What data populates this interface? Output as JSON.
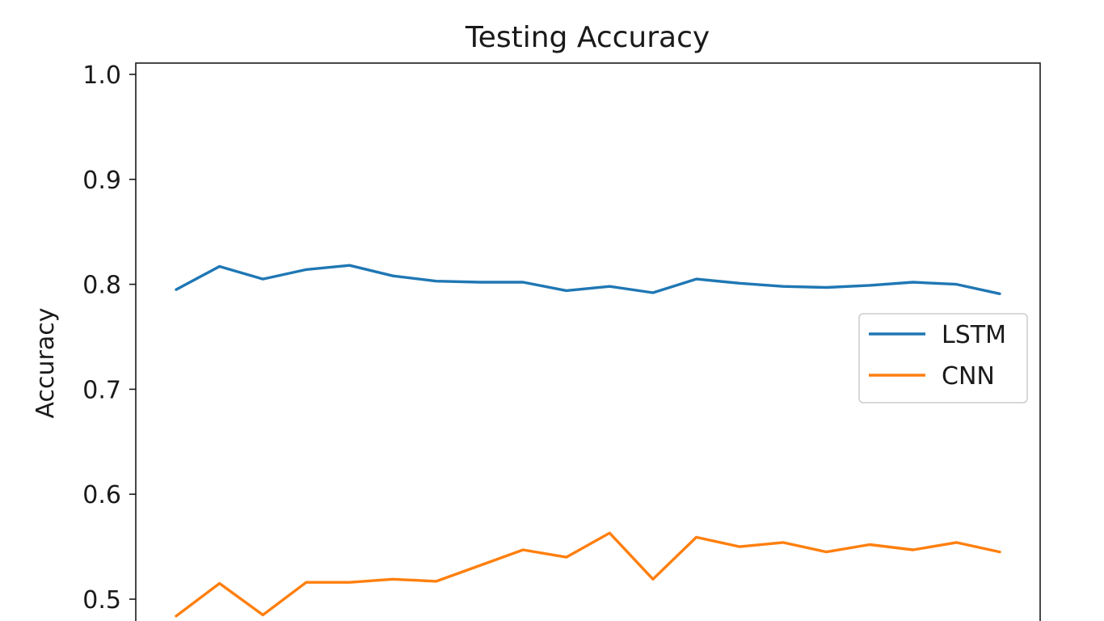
{
  "chart_data": {
    "type": "line",
    "title": "Testing Accuracy",
    "xlabel": "",
    "ylabel": "Accuracy",
    "ylim": [
      0.47,
      1.01
    ],
    "yticks": [
      0.5,
      0.6,
      0.7,
      0.8,
      0.9,
      1.0
    ],
    "ytick_labels": [
      "0.5",
      "0.6",
      "0.7",
      "0.8",
      "0.9",
      "1.0"
    ],
    "x": [
      1,
      2,
      3,
      4,
      5,
      6,
      7,
      8,
      9,
      10,
      11,
      12,
      13,
      14,
      15,
      16,
      17,
      18,
      19,
      20
    ],
    "grid": false,
    "legend_position": "center-right",
    "series": [
      {
        "name": "LSTM",
        "color": "#1f77b4",
        "values": [
          0.795,
          0.817,
          0.805,
          0.814,
          0.818,
          0.808,
          0.803,
          0.802,
          0.802,
          0.794,
          0.798,
          0.792,
          0.805,
          0.801,
          0.798,
          0.797,
          0.799,
          0.802,
          0.8,
          0.791
        ]
      },
      {
        "name": "CNN",
        "color": "#ff7f0e",
        "values": [
          0.484,
          0.515,
          0.485,
          0.516,
          0.516,
          0.519,
          0.517,
          0.532,
          0.547,
          0.54,
          0.563,
          0.519,
          0.559,
          0.55,
          0.554,
          0.545,
          0.552,
          0.547,
          0.554,
          0.545
        ]
      }
    ]
  }
}
